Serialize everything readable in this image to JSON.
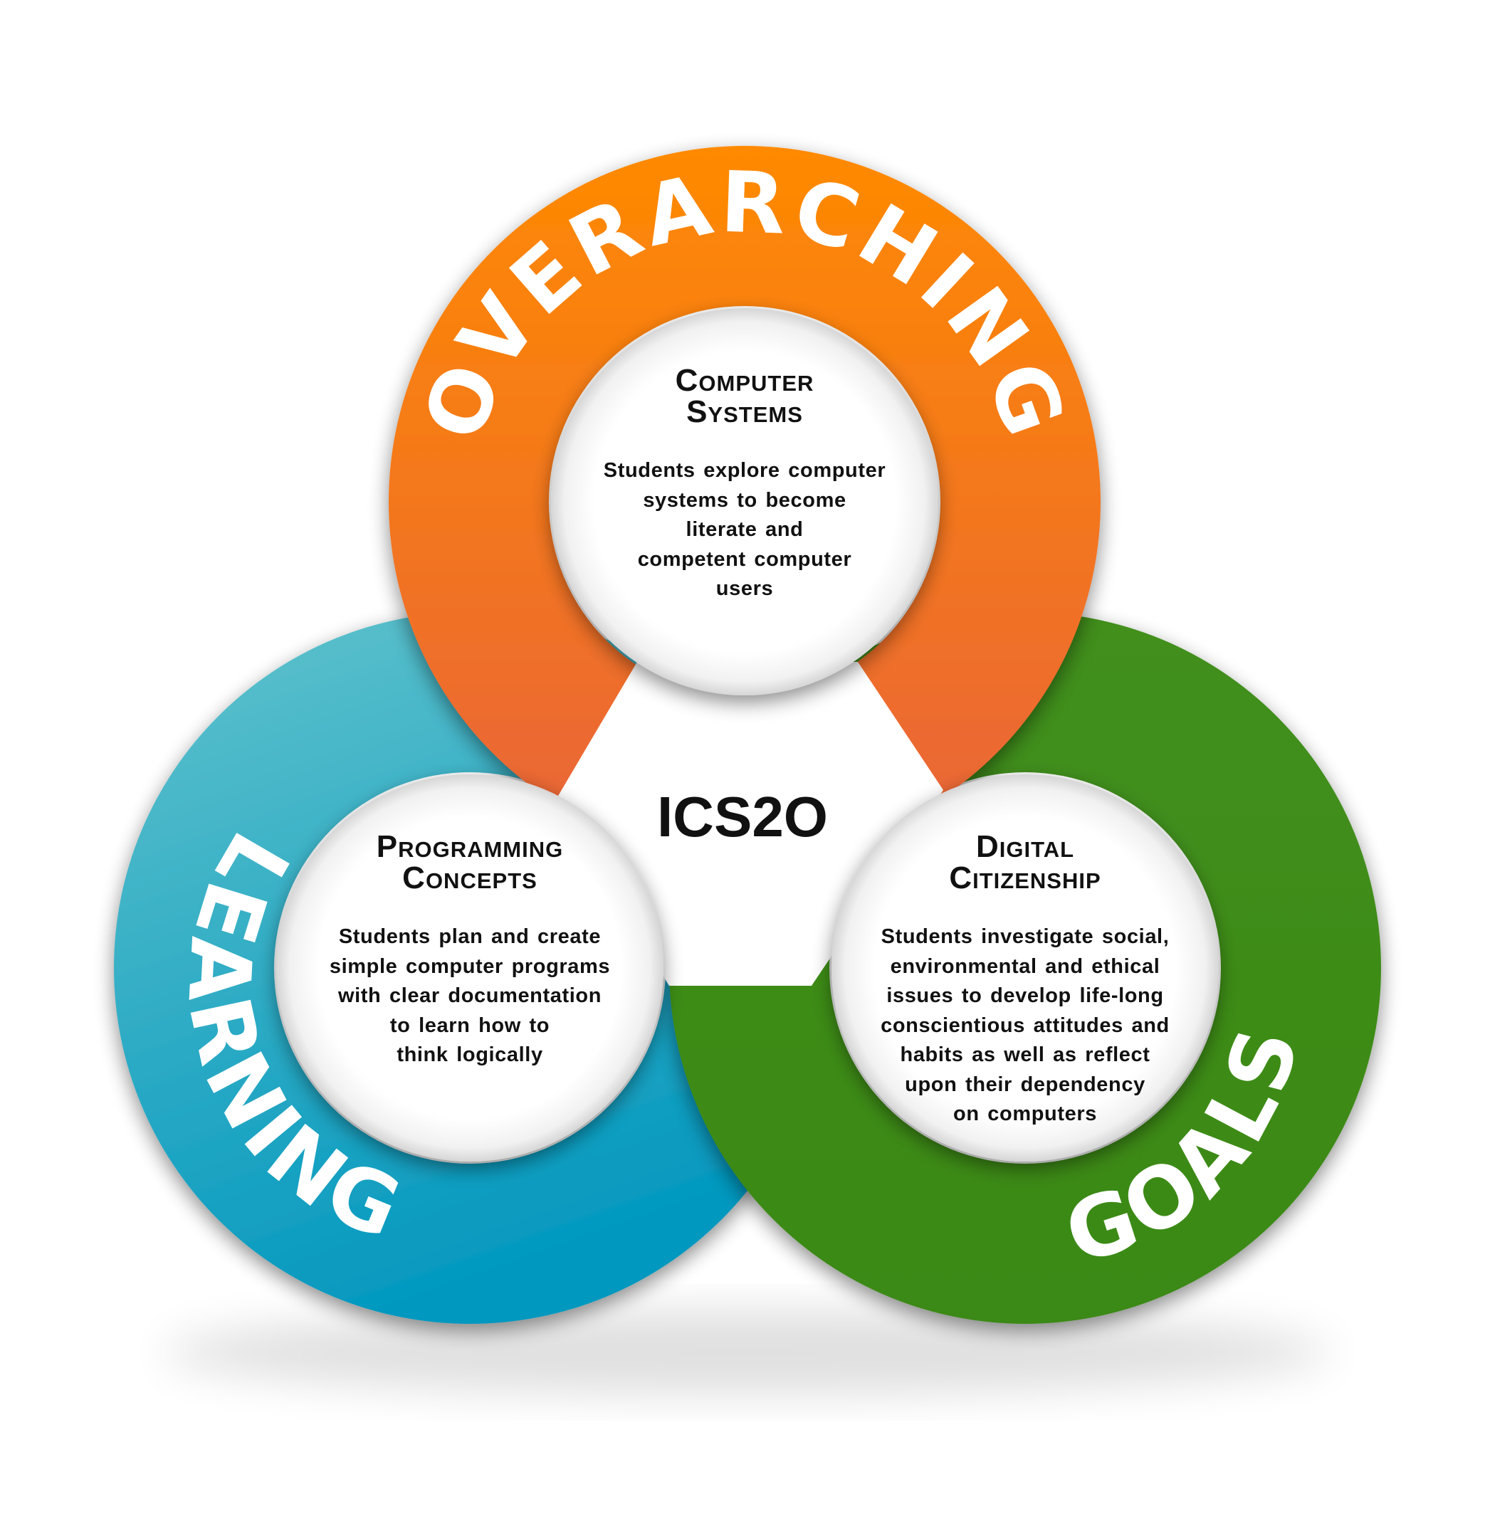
{
  "center": {
    "label": "ICS2O"
  },
  "ring_words": {
    "top": "OVERARCHING",
    "left": "LEARNING",
    "right": "GOALS"
  },
  "sections": [
    {
      "title_line1": "Computer",
      "title_line2": "Systems",
      "desc_lines": [
        "Students explore computer",
        "systems to become",
        "literate and",
        "competent computer",
        "users"
      ]
    },
    {
      "title_line1": "Programming",
      "title_line2": "Concepts",
      "desc_lines": [
        "Students plan and create",
        "simple computer programs",
        "with clear documentation",
        "to learn how to",
        "think logically"
      ]
    },
    {
      "title_line1": "Digital",
      "title_line2": "Citizenship",
      "desc_lines": [
        "Students investigate social,",
        "environmental and ethical",
        "issues to develop life-long",
        "conscientious attitudes and",
        "habits as well as reflect",
        "upon their dependency",
        "on computers"
      ]
    }
  ],
  "colors": {
    "orange_top": "#ff8a00",
    "orange_bottom": "#e8643a",
    "teal_top": "#5fc2cd",
    "teal_bottom": "#0096bd",
    "green_top": "#3f8f1a",
    "green_bottom": "#3b8a17",
    "text": "#111111",
    "ring_text": "#ffffff"
  }
}
